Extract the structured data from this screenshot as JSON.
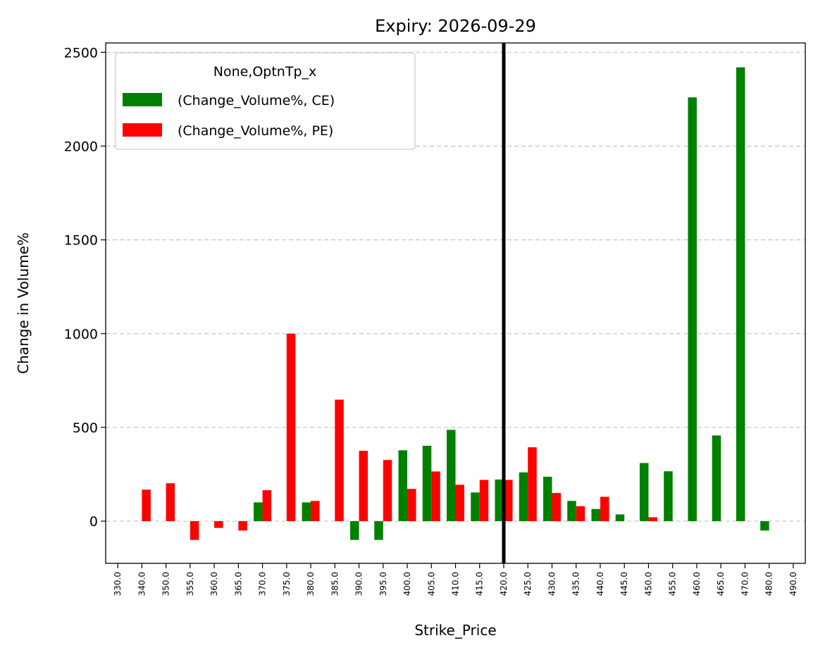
{
  "chart_data": {
    "type": "bar",
    "title": "Expiry: 2026-09-29",
    "xlabel": "Strike_Price",
    "ylabel": "Change in Volume%",
    "categories": [
      "330.0",
      "340.0",
      "350.0",
      "355.0",
      "360.0",
      "365.0",
      "370.0",
      "375.0",
      "380.0",
      "385.0",
      "390.0",
      "395.0",
      "400.0",
      "405.0",
      "410.0",
      "415.0",
      "420.0",
      "425.0",
      "430.0",
      "435.0",
      "440.0",
      "445.0",
      "450.0",
      "455.0",
      "460.0",
      "465.0",
      "470.0",
      "480.0",
      "490.0"
    ],
    "series": [
      {
        "name": "(Change_Volume%, CE)",
        "color": "#008000",
        "values": [
          null,
          null,
          null,
          null,
          null,
          null,
          100,
          null,
          100,
          null,
          -100,
          -100,
          378,
          402,
          487,
          153,
          222,
          260,
          237,
          108,
          65,
          36,
          310,
          266,
          2260,
          457,
          2420,
          -50,
          null
        ]
      },
      {
        "name": "(Change_Volume%, PE)",
        "color": "#ff0000",
        "values": [
          null,
          168,
          202,
          -100,
          -36,
          -50,
          165,
          1000,
          108,
          648,
          375,
          326,
          172,
          265,
          194,
          220,
          220,
          394,
          150,
          80,
          130,
          null,
          21,
          null,
          null,
          null,
          null,
          null,
          null
        ]
      }
    ],
    "ylim": [
      -225,
      2550
    ],
    "yticks": [
      0,
      500,
      1000,
      1500,
      2000,
      2500
    ],
    "grid": "y-dashed",
    "legend": {
      "title": "None,OptnTp_x",
      "placement": "top-left"
    },
    "vline": {
      "category": "420.0",
      "color": "#000000"
    }
  }
}
